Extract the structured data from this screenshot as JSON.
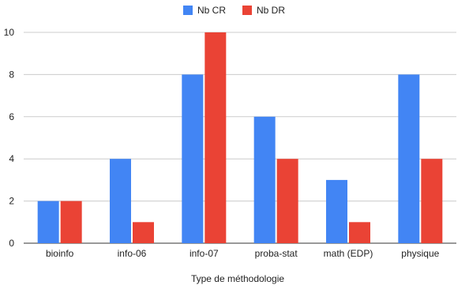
{
  "chart_data": {
    "type": "bar",
    "title": "",
    "xlabel": "Type de méthodologie",
    "ylabel": "",
    "categories": [
      "bioinfo",
      "info-06",
      "info-07",
      "proba-stat",
      "math (EDP)",
      "physique"
    ],
    "series": [
      {
        "name": "Nb CR",
        "values": [
          2,
          4,
          8,
          6,
          3,
          8
        ],
        "color": "#4285f4"
      },
      {
        "name": "Nb DR",
        "values": [
          2,
          1,
          10,
          4,
          1,
          4
        ],
        "color": "#ea4335"
      }
    ],
    "ylim": [
      0,
      10
    ],
    "yticks": [
      "0",
      "2",
      "4",
      "6",
      "8",
      "10"
    ],
    "grid": true,
    "legend_position": "top-center"
  }
}
